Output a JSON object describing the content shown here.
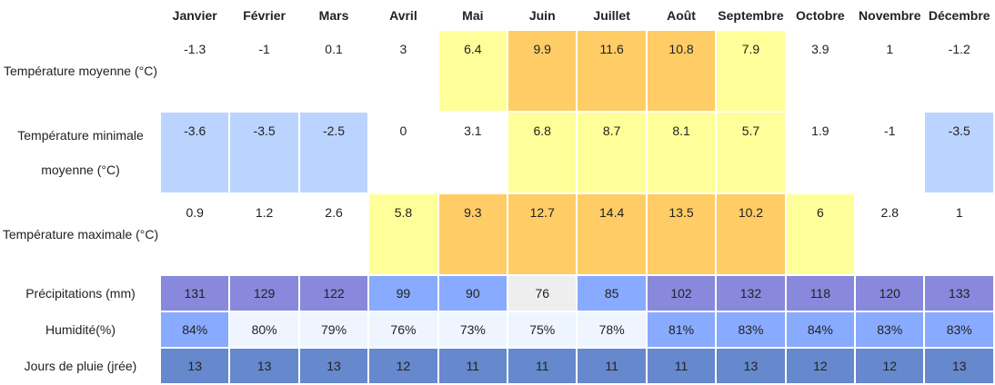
{
  "months": [
    "Janvier",
    "Février",
    "Mars",
    "Avril",
    "Mai",
    "Juin",
    "Juillet",
    "Août",
    "Septembre",
    "Octobre",
    "Novembre",
    "Décembre"
  ],
  "rows": [
    {
      "label": "Température moyenne (°C)",
      "values": [
        "-1.3",
        "-1",
        "0.1",
        "3",
        "6.4",
        "9.9",
        "11.6",
        "10.8",
        "7.9",
        "3.9",
        "1",
        "-1.2"
      ],
      "colors": [
        "#ffffff",
        "#ffffff",
        "#ffffff",
        "#ffffff",
        "#ffff99",
        "#ffcc66",
        "#ffcc66",
        "#ffcc66",
        "#ffff99",
        "#ffffff",
        "#ffffff",
        "#ffffff"
      ],
      "tall": true
    },
    {
      "label": "Température minimale moyenne (°C)",
      "values": [
        "-3.6",
        "-3.5",
        "-2.5",
        "0",
        "3.1",
        "6.8",
        "8.7",
        "8.1",
        "5.7",
        "1.9",
        "-1",
        "-3.5"
      ],
      "colors": [
        "#bbd4ff",
        "#bbd4ff",
        "#bbd4ff",
        "#ffffff",
        "#ffffff",
        "#ffff99",
        "#ffff99",
        "#ffff99",
        "#ffff99",
        "#ffffff",
        "#ffffff",
        "#bbd4ff"
      ],
      "tall": true
    },
    {
      "label": "Température maximale (°C)",
      "values": [
        "0.9",
        "1.2",
        "2.6",
        "5.8",
        "9.3",
        "12.7",
        "14.4",
        "13.5",
        "10.2",
        "6",
        "2.8",
        "1"
      ],
      "colors": [
        "#ffffff",
        "#ffffff",
        "#ffffff",
        "#ffff99",
        "#ffcc66",
        "#ffcc66",
        "#ffcc66",
        "#ffcc66",
        "#ffcc66",
        "#ffff99",
        "#ffffff",
        "#ffffff"
      ],
      "tall": true
    },
    {
      "label": "Précipitations (mm)",
      "values": [
        "131",
        "129",
        "122",
        "99",
        "90",
        "76",
        "85",
        "102",
        "132",
        "118",
        "120",
        "133"
      ],
      "colors": [
        "#8888dd",
        "#8888dd",
        "#8888dd",
        "#88aaff",
        "#88aaff",
        "#eeeeee",
        "#88aaff",
        "#8888dd",
        "#8888dd",
        "#8888dd",
        "#8888dd",
        "#8888dd"
      ],
      "tall": false
    },
    {
      "label": "Humidité(%)",
      "values": [
        "84%",
        "80%",
        "79%",
        "76%",
        "73%",
        "75%",
        "78%",
        "81%",
        "83%",
        "84%",
        "83%",
        "83%"
      ],
      "colors": [
        "#88aaff",
        "#eef5ff",
        "#eef5ff",
        "#eef5ff",
        "#eef5ff",
        "#eef5ff",
        "#eef5ff",
        "#88aaff",
        "#88aaff",
        "#88aaff",
        "#88aaff",
        "#88aaff"
      ],
      "tall": false
    },
    {
      "label": "Jours de pluie (jrée)",
      "values": [
        "13",
        "13",
        "13",
        "12",
        "11",
        "11",
        "11",
        "11",
        "13",
        "12",
        "12",
        "13"
      ],
      "colors": [
        "#6688cc",
        "#6688cc",
        "#6688cc",
        "#6688cc",
        "#6688cc",
        "#6688cc",
        "#6688cc",
        "#6688cc",
        "#6688cc",
        "#6688cc",
        "#6688cc",
        "#6688cc"
      ],
      "tall": false
    }
  ]
}
